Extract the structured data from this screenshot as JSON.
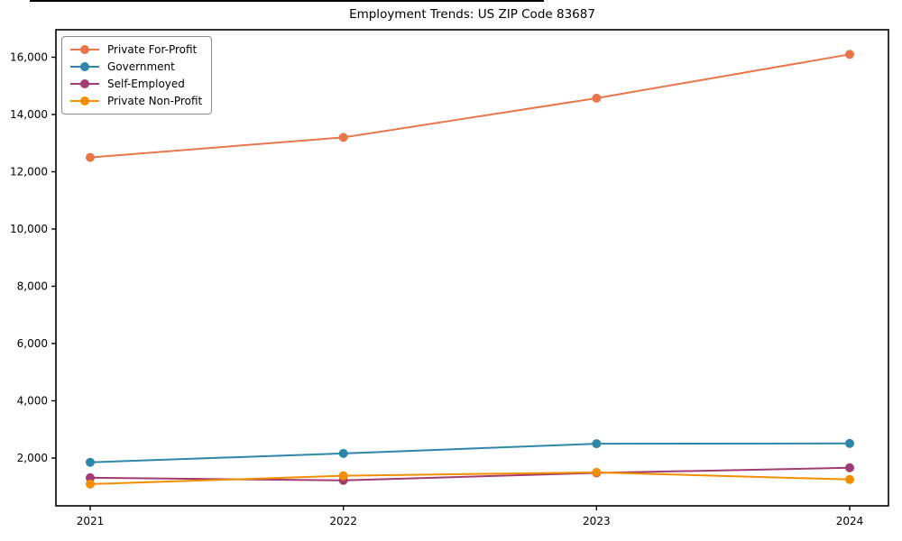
{
  "chart_data": {
    "type": "line",
    "title": "Employment Trends: US ZIP Code 83687",
    "xlabel": "",
    "ylabel": "",
    "categories": [
      "2021",
      "2022",
      "2023",
      "2024"
    ],
    "series": [
      {
        "name": "Private For-Profit",
        "color": "#E8764B",
        "values": [
          12500,
          13200,
          14570,
          16100
        ]
      },
      {
        "name": "Government",
        "color": "#2E86AB",
        "values": [
          1850,
          2160,
          2500,
          2510
        ]
      },
      {
        "name": "Self-Employed",
        "color": "#A23B72",
        "values": [
          1310,
          1220,
          1480,
          1660
        ]
      },
      {
        "name": "Private Non-Profit",
        "color": "#F18F01",
        "values": [
          1090,
          1380,
          1500,
          1250
        ]
      }
    ],
    "yticks": [
      2000,
      4000,
      6000,
      8000,
      10000,
      12000,
      14000,
      16000
    ],
    "ylim": [
      330,
      16960
    ],
    "grid": false,
    "legend_position": "upper left",
    "frame_color": "#000000",
    "tick_label_color": "#000000",
    "legend_border_color": "#8a8a8a"
  }
}
